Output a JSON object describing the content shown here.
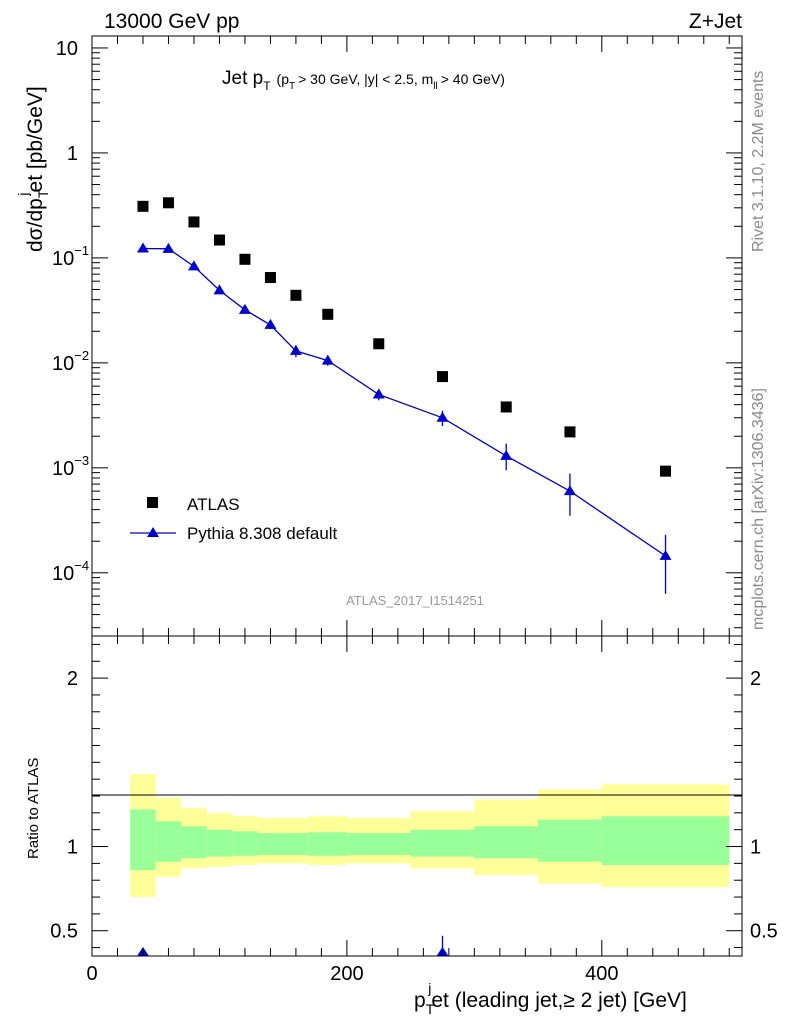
{
  "header": {
    "left": "13000 GeV pp",
    "right": "Z+Jet"
  },
  "side_labels": {
    "rivet": "Rivet 3.1.10,  2.2M events",
    "mcplots": "mcplots.cern.ch [arXiv:1306.3436]"
  },
  "analysis_id": "ATLAS_2017_I1514251",
  "colors": {
    "mc": "#0000cc",
    "data": "#000000",
    "band_inner": "#99ff99",
    "band_outer": "#ffff99"
  },
  "chart_data": [
    {
      "type": "scatter",
      "id": "main",
      "title_main": "Jet p",
      "title_main_sub": "T",
      "title_cut": "(p",
      "title_cut_sub": "T",
      "title_cut_rest": "> 30 GeV, |y| < 2.5, m",
      "title_cut_sub2": "ll",
      "title_cut_end": "> 40 GeV)",
      "ylabel": "dσ/dp",
      "ylabel_sub": "T",
      "ylabel_sup": "j",
      "ylabel_rest": "et [pb/GeV]",
      "yscale": "log",
      "ylim": [
        2.5e-05,
        13
      ],
      "xlim": [
        0,
        510
      ],
      "yticks": [
        {
          "v": 10,
          "base": "10",
          "exp": ""
        },
        {
          "v": 1,
          "base": "1",
          "exp": ""
        },
        {
          "v": 0.1,
          "base": "10",
          "exp": "−1"
        },
        {
          "v": 0.01,
          "base": "10",
          "exp": "−2"
        },
        {
          "v": 0.001,
          "base": "10",
          "exp": "−3"
        },
        {
          "v": 0.0001,
          "base": "10",
          "exp": "−4"
        }
      ],
      "legend": [
        "ATLAS",
        "Pythia 8.308 default"
      ],
      "legend_position": "bottom-left",
      "series": [
        {
          "name": "ATLAS",
          "marker": "square",
          "points": [
            {
              "x": 40,
              "y": 0.31
            },
            {
              "x": 60,
              "y": 0.335
            },
            {
              "x": 80,
              "y": 0.22
            },
            {
              "x": 100,
              "y": 0.148
            },
            {
              "x": 120,
              "y": 0.097
            },
            {
              "x": 140,
              "y": 0.065
            },
            {
              "x": 160,
              "y": 0.044
            },
            {
              "x": 185,
              "y": 0.029
            },
            {
              "x": 225,
              "y": 0.0152
            },
            {
              "x": 275,
              "y": 0.0074
            },
            {
              "x": 325,
              "y": 0.0038
            },
            {
              "x": 375,
              "y": 0.0022
            },
            {
              "x": 450,
              "y": 0.00093
            }
          ]
        },
        {
          "name": "Pythia 8.308 default",
          "marker": "triangle",
          "points": [
            {
              "x": 40,
              "y": 0.123,
              "lo": 0.118,
              "hi": 0.128
            },
            {
              "x": 60,
              "y": 0.122,
              "lo": 0.117,
              "hi": 0.127
            },
            {
              "x": 80,
              "y": 0.083,
              "lo": 0.079,
              "hi": 0.087
            },
            {
              "x": 100,
              "y": 0.049,
              "lo": 0.046,
              "hi": 0.052
            },
            {
              "x": 120,
              "y": 0.032,
              "lo": 0.03,
              "hi": 0.034
            },
            {
              "x": 140,
              "y": 0.023,
              "lo": 0.021,
              "hi": 0.025
            },
            {
              "x": 160,
              "y": 0.013,
              "lo": 0.0113,
              "hi": 0.0147
            },
            {
              "x": 185,
              "y": 0.0105,
              "lo": 0.0094,
              "hi": 0.0116
            },
            {
              "x": 225,
              "y": 0.005,
              "lo": 0.0044,
              "hi": 0.0056
            },
            {
              "x": 275,
              "y": 0.003,
              "lo": 0.0025,
              "hi": 0.0035
            },
            {
              "x": 325,
              "y": 0.0013,
              "lo": 0.00095,
              "hi": 0.0017
            },
            {
              "x": 375,
              "y": 0.0006,
              "lo": 0.00035,
              "hi": 0.00088
            },
            {
              "x": 450,
              "y": 0.000145,
              "lo": 6.3e-05,
              "hi": 0.00023
            }
          ]
        }
      ]
    },
    {
      "type": "area",
      "id": "ratio",
      "ylabel": "Ratio to ATLAS",
      "xlabel": "p",
      "xlabel_sub": "T",
      "xlabel_sup": "j",
      "xlabel_rest": "et (leading jet,≥ 2 jet) [GeV]",
      "xlim": [
        0,
        510
      ],
      "ylim": [
        0.35,
        2.25
      ],
      "xticks": [
        0,
        200,
        400
      ],
      "yticks": [
        0.5,
        1,
        2
      ],
      "bands": [
        {
          "x0": 30,
          "x1": 50,
          "in_lo": 0.86,
          "in_hi": 1.22,
          "out_lo": 0.7,
          "out_hi": 1.43
        },
        {
          "x0": 50,
          "x1": 70,
          "in_lo": 0.91,
          "in_hi": 1.15,
          "out_lo": 0.82,
          "out_hi": 1.29
        },
        {
          "x0": 70,
          "x1": 90,
          "in_lo": 0.93,
          "in_hi": 1.12,
          "out_lo": 0.87,
          "out_hi": 1.23
        },
        {
          "x0": 90,
          "x1": 110,
          "in_lo": 0.94,
          "in_hi": 1.1,
          "out_lo": 0.88,
          "out_hi": 1.2
        },
        {
          "x0": 110,
          "x1": 130,
          "in_lo": 0.945,
          "in_hi": 1.09,
          "out_lo": 0.89,
          "out_hi": 1.18
        },
        {
          "x0": 130,
          "x1": 170,
          "in_lo": 0.95,
          "in_hi": 1.08,
          "out_lo": 0.9,
          "out_hi": 1.17
        },
        {
          "x0": 170,
          "x1": 200,
          "in_lo": 0.945,
          "in_hi": 1.085,
          "out_lo": 0.89,
          "out_hi": 1.18
        },
        {
          "x0": 200,
          "x1": 250,
          "in_lo": 0.95,
          "in_hi": 1.08,
          "out_lo": 0.9,
          "out_hi": 1.17
        },
        {
          "x0": 250,
          "x1": 300,
          "in_lo": 0.94,
          "in_hi": 1.1,
          "out_lo": 0.87,
          "out_hi": 1.21
        },
        {
          "x0": 300,
          "x1": 350,
          "in_lo": 0.93,
          "in_hi": 1.12,
          "out_lo": 0.83,
          "out_hi": 1.28
        },
        {
          "x0": 350,
          "x1": 400,
          "in_lo": 0.91,
          "in_hi": 1.16,
          "out_lo": 0.78,
          "out_hi": 1.34
        },
        {
          "x0": 400,
          "x1": 500,
          "in_lo": 0.89,
          "in_hi": 1.18,
          "out_lo": 0.76,
          "out_hi": 1.37
        }
      ],
      "ratio_points": [
        {
          "x": 40,
          "y": 0.34,
          "hi": 0.38
        },
        {
          "x": 275,
          "y": 0.34,
          "hi": 0.47
        }
      ]
    }
  ]
}
